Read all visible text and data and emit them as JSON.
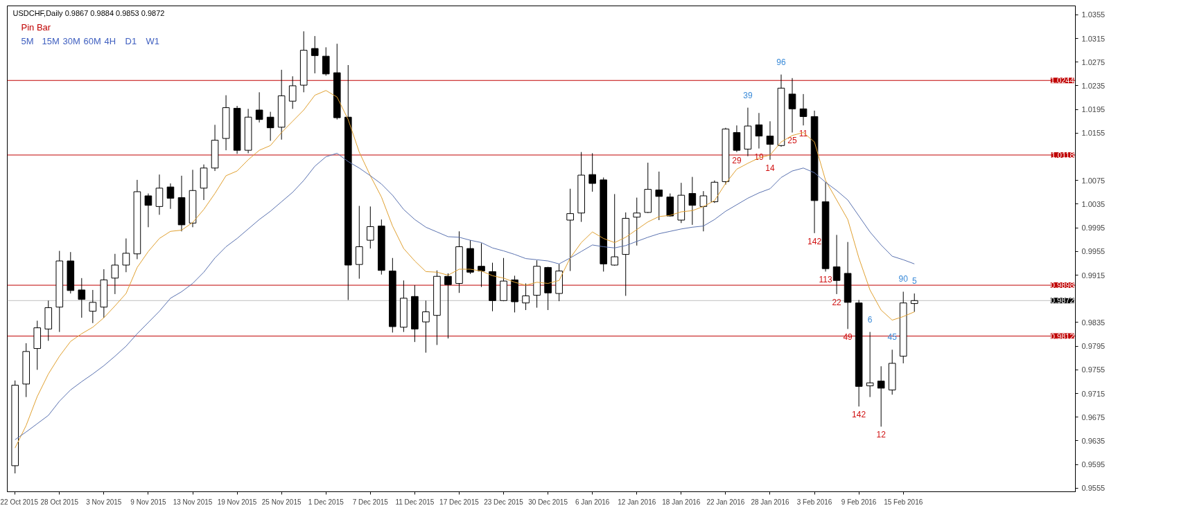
{
  "chart_data": {
    "type": "candlestick",
    "title": "USDCHF,Daily  0.9867 0.9884 0.9853 0.9872",
    "categories": [
      "22 Oct 2015",
      null,
      null,
      null,
      "28 Oct 2015",
      null,
      null,
      null,
      "3 Nov 2015",
      null,
      null,
      null,
      "9 Nov 2015",
      null,
      null,
      null,
      "13 Nov 2015",
      null,
      null,
      null,
      "19 Nov 2015",
      null,
      null,
      null,
      "25 Nov 2015",
      null,
      null,
      null,
      "1 Dec 2015",
      null,
      null,
      null,
      "7 Dec 2015",
      null,
      null,
      null,
      "11 Dec 2015",
      null,
      null,
      null,
      "17 Dec 2015",
      null,
      null,
      null,
      "23 Dec 2015",
      null,
      null,
      null,
      "30 Dec 2015",
      null,
      null,
      null,
      "6 Jan 2016",
      null,
      null,
      null,
      "12 Jan 2016",
      null,
      null,
      null,
      "18 Jan 2016",
      null,
      null,
      null,
      "22 Jan 2016",
      null,
      null,
      null,
      "28 Jan 2016",
      null,
      null,
      null,
      "3 Feb 2016",
      null,
      null,
      null,
      "9 Feb 2016",
      null,
      null,
      null,
      "15 Feb 2016",
      null
    ],
    "value_labels": [
      null,
      null,
      null,
      null,
      null,
      null,
      null,
      null,
      null,
      null,
      null,
      null,
      null,
      null,
      null,
      null,
      null,
      null,
      null,
      null,
      null,
      null,
      null,
      null,
      null,
      null,
      null,
      null,
      null,
      null,
      null,
      null,
      null,
      null,
      null,
      null,
      null,
      null,
      null,
      null,
      null,
      null,
      null,
      null,
      null,
      null,
      null,
      null,
      null,
      null,
      null,
      null,
      null,
      null,
      null,
      null,
      null,
      null,
      null,
      null,
      null,
      null,
      null,
      null,
      null,
      "29",
      "39",
      "19",
      "14",
      "96",
      "25",
      "11",
      "142",
      "113",
      "22",
      "49",
      "142",
      "6",
      "12",
      "45",
      "90",
      "5"
    ],
    "ohlc": [
      [
        0.9593,
        0.9737,
        0.958,
        0.9729
      ],
      [
        0.9731,
        0.98,
        0.9709,
        0.9786
      ],
      [
        0.9791,
        0.9838,
        0.9755,
        0.9826
      ],
      [
        0.9824,
        0.9872,
        0.9804,
        0.986
      ],
      [
        0.9861,
        0.9956,
        0.9819,
        0.9939
      ],
      [
        0.9939,
        0.9954,
        0.9884,
        0.9889
      ],
      [
        0.989,
        0.991,
        0.9843,
        0.9874
      ],
      [
        0.9854,
        0.989,
        0.9834,
        0.9869
      ],
      [
        0.9861,
        0.9925,
        0.9843,
        0.9907
      ],
      [
        0.991,
        0.9951,
        0.9883,
        0.9932
      ],
      [
        0.9932,
        0.9977,
        0.992,
        0.9952
      ],
      [
        0.9951,
        1.0076,
        0.9942,
        1.0056
      ],
      [
        1.0049,
        1.0053,
        0.9996,
        1.0033
      ],
      [
        1.0031,
        1.0085,
        1.0017,
        1.0062
      ],
      [
        1.0064,
        1.007,
        1.0027,
        1.0045
      ],
      [
        1.0046,
        1.0083,
        0.9989,
        1.0
      ],
      [
        1.0003,
        1.0093,
        0.9996,
        1.0058
      ],
      [
        1.0062,
        1.0102,
        1.0042,
        1.0096
      ],
      [
        1.0096,
        1.0169,
        1.0091,
        1.0143
      ],
      [
        1.0146,
        1.0219,
        1.0126,
        1.0198
      ],
      [
        1.0197,
        1.0201,
        1.012,
        1.0126
      ],
      [
        1.0126,
        1.0196,
        1.0121,
        1.0182
      ],
      [
        1.0194,
        1.0224,
        1.0173,
        1.0178
      ],
      [
        1.0182,
        1.0191,
        1.0142,
        1.0164
      ],
      [
        1.0165,
        1.0262,
        1.0144,
        1.0218
      ],
      [
        1.0209,
        1.0251,
        1.0196,
        1.0235
      ],
      [
        1.0236,
        1.0327,
        1.0224,
        1.0295
      ],
      [
        1.0298,
        1.0319,
        1.0256,
        1.0286
      ],
      [
        1.0285,
        1.03,
        1.0252,
        1.0255
      ],
      [
        1.0257,
        1.0306,
        1.0178,
        1.0181
      ],
      [
        1.0182,
        1.027,
        0.9873,
        0.9932
      ],
      [
        0.9933,
        1.0032,
        0.9909,
        0.9963
      ],
      [
        0.9974,
        1.0031,
        0.996,
        0.9997
      ],
      [
        0.9998,
        1.0009,
        0.9916,
        0.9923
      ],
      [
        0.9922,
        0.9944,
        0.9818,
        0.9828
      ],
      [
        0.9827,
        0.9906,
        0.9819,
        0.9876
      ],
      [
        0.9879,
        0.9898,
        0.9802,
        0.9824
      ],
      [
        0.9836,
        0.9872,
        0.9784,
        0.9853
      ],
      [
        0.9847,
        0.9923,
        0.9797,
        0.9913
      ],
      [
        0.9913,
        0.9918,
        0.9808,
        0.9899
      ],
      [
        0.9901,
        0.9989,
        0.9885,
        0.9963
      ],
      [
        0.996,
        0.9974,
        0.9917,
        0.992
      ],
      [
        0.993,
        0.9969,
        0.9895,
        0.9922
      ],
      [
        0.9921,
        0.9936,
        0.9854,
        0.9872
      ],
      [
        0.9872,
        0.9944,
        0.9871,
        0.9905
      ],
      [
        0.9907,
        0.9914,
        0.9852,
        0.987
      ],
      [
        0.9868,
        0.9901,
        0.9856,
        0.988
      ],
      [
        0.9881,
        0.994,
        0.986,
        0.993
      ],
      [
        0.9928,
        0.9929,
        0.9856,
        0.9885
      ],
      [
        0.9884,
        0.9934,
        0.9871,
        0.9922
      ],
      [
        1.0008,
        1.0061,
        0.9922,
        1.0019
      ],
      [
        1.002,
        1.0123,
        1.0005,
        1.0084
      ],
      [
        1.0085,
        1.0121,
        1.0056,
        1.007
      ],
      [
        1.0076,
        1.008,
        0.9921,
        0.9934
      ],
      [
        0.9932,
        1.0052,
        0.9931,
        0.9946
      ],
      [
        0.995,
        1.0021,
        0.988,
        1.0011
      ],
      [
        1.0013,
        1.0046,
        0.9965,
        1.002
      ],
      [
        1.0021,
        1.0105,
        1.002,
        1.006
      ],
      [
        1.0059,
        1.009,
        1.0008,
        1.0048
      ],
      [
        1.0047,
        1.0053,
        1.0014,
        1.0015
      ],
      [
        1.0008,
        1.0071,
        1.0003,
        1.005
      ],
      [
        1.0053,
        1.0081,
        1.0,
        1.0033
      ],
      [
        1.0031,
        1.0057,
        0.9989,
        1.0049
      ],
      [
        1.0039,
        1.0075,
        1.0037,
        1.0072
      ],
      [
        1.0073,
        1.0164,
        1.0068,
        1.0162
      ],
      [
        1.0156,
        1.0168,
        1.0123,
        1.0126
      ],
      [
        1.0128,
        1.0198,
        1.0116,
        1.0167
      ],
      [
        1.0169,
        1.0189,
        1.0129,
        1.015
      ],
      [
        1.015,
        1.0175,
        1.011,
        1.0136
      ],
      [
        1.0134,
        1.0254,
        1.0132,
        1.0231
      ],
      [
        1.0221,
        1.0248,
        1.0156,
        1.0196
      ],
      [
        1.0196,
        1.0221,
        1.0168,
        1.0183
      ],
      [
        1.0183,
        1.0193,
        0.9986,
        1.0041
      ],
      [
        1.0039,
        1.0072,
        0.9921,
        0.9926
      ],
      [
        0.9929,
        0.9983,
        0.9883,
        0.9906
      ],
      [
        0.9918,
        0.9971,
        0.9824,
        0.9869
      ],
      [
        0.9868,
        0.9873,
        0.9693,
        0.9727
      ],
      [
        0.9728,
        0.9819,
        0.9709,
        0.9733
      ],
      [
        0.9736,
        0.9761,
        0.9659,
        0.9724
      ],
      [
        0.9721,
        0.9789,
        0.9713,
        0.9766
      ],
      [
        0.9778,
        0.9887,
        0.9766,
        0.9868
      ],
      [
        0.9867,
        0.9884,
        0.9853,
        0.9872
      ]
    ],
    "series": [
      {
        "type": "line",
        "color": "#e0a030",
        "values": [
          0.9623,
          0.9661,
          0.971,
          0.9748,
          0.9778,
          0.9803,
          0.9816,
          0.9827,
          0.9843,
          0.9863,
          0.9884,
          0.9928,
          0.9955,
          0.9977,
          0.9989,
          0.9991,
          1.0004,
          1.0026,
          1.0053,
          1.0083,
          1.0091,
          1.011,
          1.0126,
          1.0134,
          1.0156,
          1.0175,
          1.0194,
          1.0219,
          1.0227,
          1.0216,
          1.0178,
          1.0123,
          1.0083,
          1.0047,
          0.9998,
          0.996,
          0.9939,
          0.9921,
          0.992,
          0.9915,
          0.9925,
          0.9925,
          0.9922,
          0.9914,
          0.991,
          0.9903,
          0.9898,
          0.9903,
          0.9901,
          0.9906,
          0.9944,
          0.997,
          0.9988,
          0.9977,
          0.997,
          0.9979,
          0.9992,
          1.0005,
          1.0014,
          1.0016,
          1.0022,
          1.0024,
          1.0031,
          1.0041,
          1.007,
          1.0094,
          1.0104,
          1.0113,
          1.0118,
          1.014,
          1.0151,
          1.0156,
          1.014,
          1.0075,
          1.0042,
          1.0009,
          0.9944,
          0.989,
          0.9856,
          0.9839,
          0.9845,
          0.9853
        ]
      },
      {
        "type": "line",
        "color": "#5a72b0",
        "values": [
          0.9637,
          0.965,
          0.9664,
          0.9678,
          0.9702,
          0.9721,
          0.9735,
          0.9748,
          0.9762,
          0.9778,
          0.9795,
          0.9816,
          0.9835,
          0.9854,
          0.9876,
          0.9887,
          0.9901,
          0.992,
          0.9944,
          0.9963,
          0.9977,
          0.9993,
          1.0009,
          1.0023,
          1.0039,
          1.0055,
          1.0075,
          1.0099,
          1.0115,
          1.0121,
          1.0107,
          1.0096,
          1.0083,
          1.0069,
          1.005,
          1.0026,
          1.0009,
          0.9996,
          0.9988,
          0.998,
          0.9979,
          0.9974,
          0.997,
          0.9961,
          0.9956,
          0.995,
          0.9943,
          0.9941,
          0.9939,
          0.9934,
          0.9944,
          0.9955,
          0.9966,
          0.9963,
          0.9961,
          0.9965,
          0.9972,
          0.9979,
          0.9985,
          0.9989,
          0.9993,
          0.9996,
          0.9998,
          1.0009,
          1.0023,
          1.0034,
          1.0045,
          1.0054,
          1.0061,
          1.008,
          1.0091,
          1.0096,
          1.0088,
          1.0072,
          1.0058,
          1.0042,
          1.0015,
          0.9988,
          0.9966,
          0.9947,
          0.9941,
          0.9934
        ]
      }
    ],
    "ylim": [
      0.9549,
      1.037
    ],
    "yticks": [
      {
        "value": 1.0355,
        "label": "1.0355"
      },
      {
        "value": 1.0315,
        "label": "1.0315"
      },
      {
        "value": 1.0275,
        "label": "1.0275"
      },
      {
        "value": 1.0235,
        "label": "1.0235"
      },
      {
        "value": 1.0195,
        "label": "1.0195"
      },
      {
        "value": 1.0155,
        "label": "1.0155"
      },
      {
        "value": 1.0075,
        "label": "1.0075"
      },
      {
        "value": 1.0035,
        "label": "1.0035"
      },
      {
        "value": 0.9995,
        "label": "0.9995"
      },
      {
        "value": 0.9955,
        "label": "0.9955"
      },
      {
        "value": 0.9915,
        "label": "0.9915"
      },
      {
        "value": 0.9835,
        "label": "0.9835"
      },
      {
        "value": 0.9795,
        "label": "0.9795"
      },
      {
        "value": 0.9755,
        "label": "0.9755"
      },
      {
        "value": 0.9715,
        "label": "0.9715"
      },
      {
        "value": 0.9675,
        "label": "0.9675"
      },
      {
        "value": 0.9635,
        "label": "0.9635"
      },
      {
        "value": 0.9595,
        "label": "0.9595"
      },
      {
        "value": 0.9555,
        "label": "0.9555"
      }
    ],
    "ref_lines": [
      {
        "axis": "y",
        "value": 1.0244,
        "label": "1.0244",
        "color": "#c00000"
      },
      {
        "axis": "y",
        "value": 1.0118,
        "label": "1.0118",
        "color": "#c00000"
      },
      {
        "axis": "y",
        "value": 0.9898,
        "label": "0.9898",
        "color": "#c00000"
      },
      {
        "axis": "y",
        "value": 0.9812,
        "label": "0.9812",
        "color": "#c00000"
      },
      {
        "axis": "y",
        "value": 0.9872,
        "label": "0.9872",
        "color": "#c0c0c0"
      }
    ],
    "annotations": [
      "Pin Bar",
      "5M",
      "15M",
      "30M",
      "60M",
      "4H",
      "D1",
      "W1"
    ]
  }
}
